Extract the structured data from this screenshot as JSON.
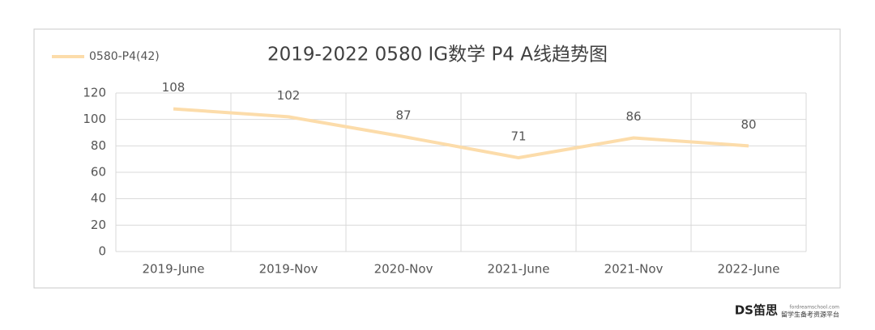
{
  "chart_data": {
    "type": "line",
    "title": "2019-2022 0580 IG数学 P4 A线趋势图",
    "categories": [
      "2019-June",
      "2019-Nov",
      "2020-Nov",
      "2021-June",
      "2021-Nov",
      "2022-June"
    ],
    "series": [
      {
        "name": "0580-P4(42)",
        "color": "#fcdcaa",
        "values": [
          108,
          102,
          87,
          71,
          86,
          80
        ]
      }
    ],
    "ylim": [
      0,
      120
    ],
    "yticks": [
      0,
      20,
      40,
      60,
      80,
      100,
      120
    ],
    "grid": true,
    "legend": "top-left",
    "data_labels": true
  },
  "watermark": {
    "logo": "DS笛思",
    "url": "fordreamschool.com",
    "tagline": "留学生备考资源平台"
  }
}
